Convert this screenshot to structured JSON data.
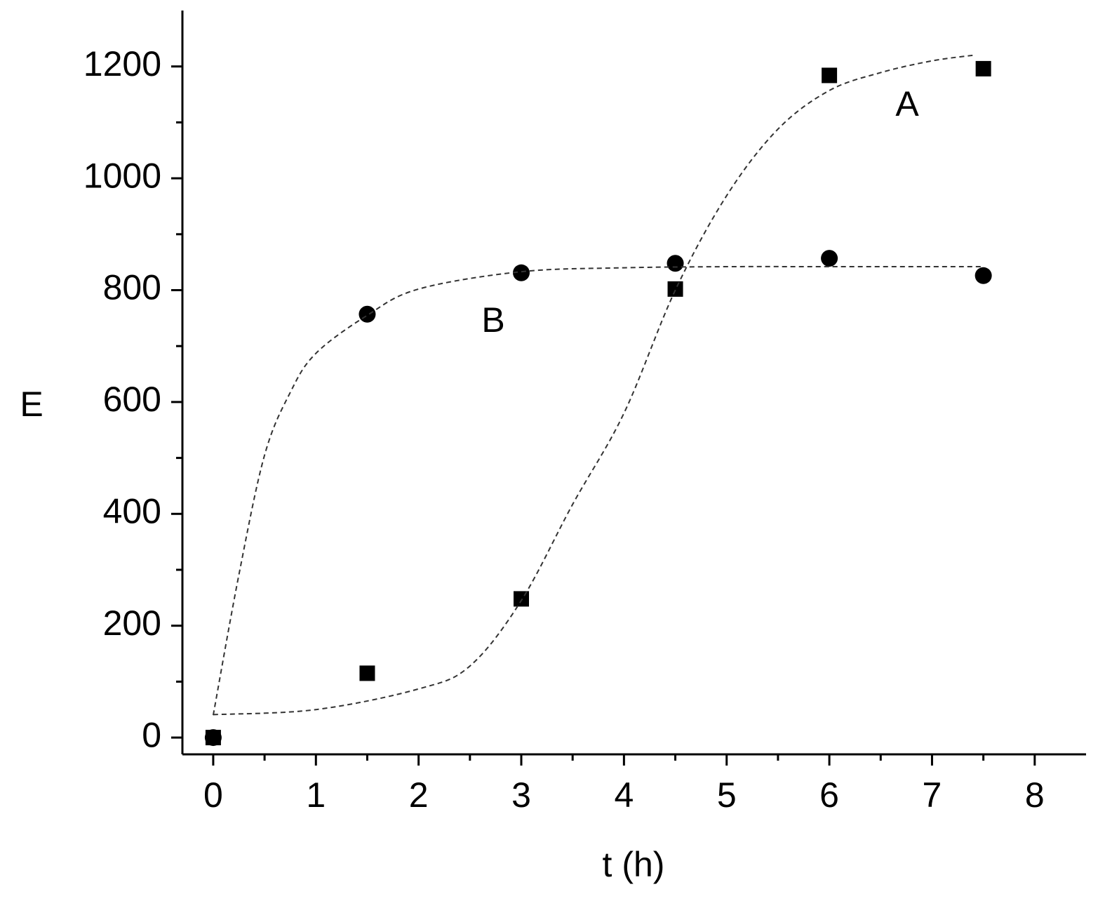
{
  "chart_data": {
    "type": "scatter",
    "xlabel": "t (h)",
    "ylabel": "E",
    "annotations": [
      "A",
      "B"
    ],
    "xlim": [
      -0.3,
      8.5
    ],
    "xticks": [
      0,
      1,
      2,
      3,
      4,
      5,
      6,
      7,
      8
    ],
    "xminorticks": [
      0.5,
      1.5,
      2.5,
      3.5,
      4.5,
      5.5,
      6.5,
      7.5
    ],
    "ylim": [
      -30,
      1300
    ],
    "yticks": [
      0,
      200,
      400,
      600,
      800,
      1000,
      1200
    ],
    "yminorticks": [
      100,
      300,
      500,
      700,
      900,
      1100
    ],
    "grid": false,
    "series": [
      {
        "marker": "square",
        "color": "#000000",
        "x": [
          0,
          1.5,
          3,
          4.5,
          6,
          7.5
        ],
        "values": [
          0,
          115,
          248,
          802,
          1184,
          1196
        ]
      },
      {
        "marker": "circle",
        "color": "#000000",
        "x": [
          0,
          1.5,
          3,
          4.5,
          6,
          7.5
        ],
        "values": [
          0,
          757,
          831,
          848,
          857,
          826
        ]
      },
      {
        "marker": "dashed-line",
        "color": "#333333",
        "x": [
          0,
          1,
          2,
          2.5,
          3,
          3.5,
          4,
          4.5,
          5,
          5.5,
          6,
          6.5,
          7,
          7.4
        ],
        "values": [
          41,
          50,
          87,
          128,
          245,
          417,
          580,
          800,
          969,
          1088,
          1157,
          1189,
          1210,
          1220
        ]
      },
      {
        "marker": "dashed-line",
        "color": "#333333",
        "x": [
          0,
          0.25,
          0.5,
          0.75,
          1,
          1.5,
          2,
          3,
          4,
          5,
          6,
          7.5
        ],
        "values": [
          40,
          291,
          505,
          617,
          687,
          755,
          802,
          833,
          840,
          842,
          842,
          842
        ]
      }
    ]
  }
}
